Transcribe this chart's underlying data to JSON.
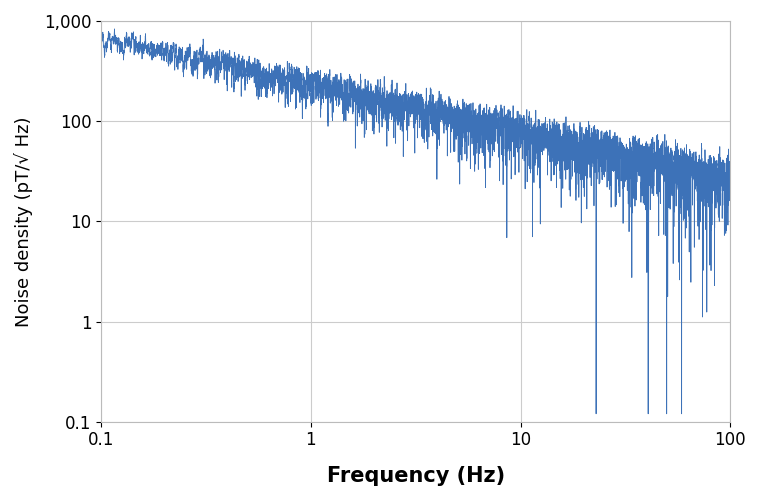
{
  "title": "",
  "xlabel": "Frequency (Hz)",
  "ylabel": "Noise density (pT/√ Hz)",
  "xlim": [
    0.1,
    100
  ],
  "ylim": [
    0.1,
    1000
  ],
  "line_color": "#3d72b8",
  "line_width": 0.6,
  "background_color": "#ffffff",
  "grid_color": "#cccccc",
  "xlabel_fontsize": 15,
  "ylabel_fontsize": 13,
  "tick_fontsize": 12,
  "seed": 12345,
  "f_start": 0.1,
  "f_end": 100,
  "n_points": 8000
}
